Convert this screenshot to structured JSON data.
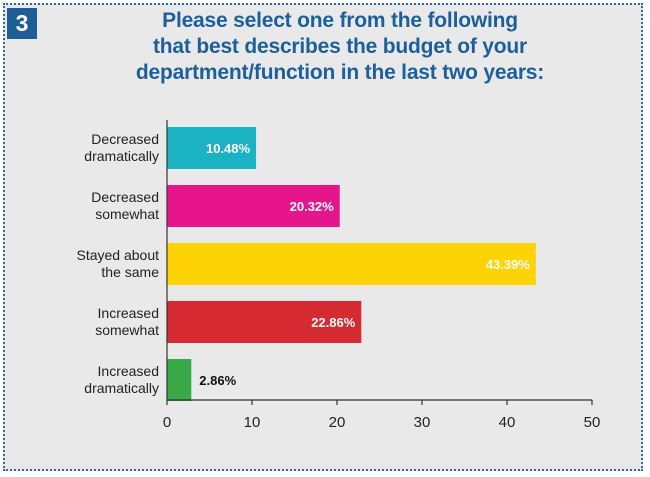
{
  "badge": "3",
  "title_lines": [
    "Please select one from the following",
    "that best describes the budget of your",
    "department/function in the last two years:"
  ],
  "chart_data": {
    "type": "bar",
    "orientation": "horizontal",
    "categories": [
      [
        "Decreased",
        "dramatically"
      ],
      [
        "Decreased",
        "somewhat"
      ],
      [
        "Stayed about",
        "the same"
      ],
      [
        "Increased",
        "somewhat"
      ],
      [
        "Increased",
        "dramatically"
      ]
    ],
    "values": [
      10.48,
      20.32,
      43.39,
      22.86,
      2.86
    ],
    "value_labels": [
      "10.48%",
      "20.32%",
      "43.39%",
      "22.86%",
      "2.86%"
    ],
    "colors": [
      "#1bb3c4",
      "#e6158b",
      "#fed305",
      "#d52a32",
      "#3aaa49"
    ],
    "xlim": [
      0,
      50
    ],
    "xticks": [
      0,
      10,
      20,
      30,
      40,
      50
    ],
    "grid": false,
    "title": "Please select one from the following that best describes the budget of your department/function in the last two years:"
  }
}
